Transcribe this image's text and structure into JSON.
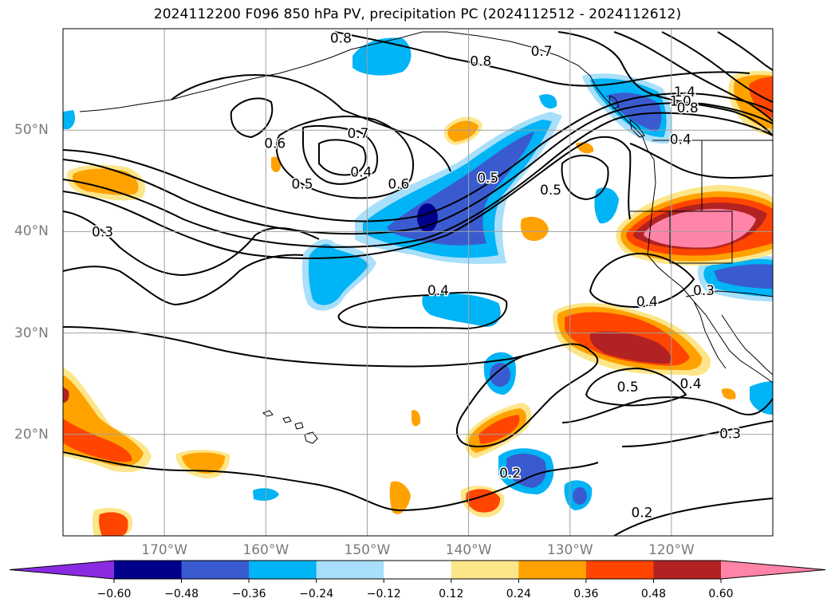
{
  "title": "2024112200 F096 850 hPa PV, precipitation PC (2024112512 - 2024112612)",
  "chart_data": {
    "type": "contour-map",
    "title": "2024112200 F096 850 hPa PV, precipitation PC (2024112512 - 2024112612)",
    "xlim": [
      -180,
      -110
    ],
    "ylim": [
      10,
      60
    ],
    "grid": true,
    "lon_ticks": [
      {
        "value": -170,
        "label": "170°W"
      },
      {
        "value": -160,
        "label": "160°W"
      },
      {
        "value": -150,
        "label": "150°W"
      },
      {
        "value": -140,
        "label": "140°W"
      },
      {
        "value": -130,
        "label": "130°W"
      },
      {
        "value": -120,
        "label": "120°W"
      }
    ],
    "lat_ticks": [
      {
        "value": 20,
        "label": "20°N"
      },
      {
        "value": 30,
        "label": "30°N"
      },
      {
        "value": 40,
        "label": "40°N"
      },
      {
        "value": 50,
        "label": "50°N"
      }
    ],
    "colorbar": {
      "extend": "both",
      "levels": [
        -0.6,
        -0.48,
        -0.36,
        -0.24,
        -0.12,
        0.12,
        0.24,
        0.36,
        0.48,
        0.6
      ],
      "tick_labels": [
        "−0.60",
        "−0.48",
        "−0.36",
        "−0.24",
        "−0.12",
        "0.12",
        "0.24",
        "0.36",
        "0.48",
        "0.60"
      ],
      "colors": [
        "#8a2be2",
        "#00008b",
        "#3a5bd0",
        "#00b4f5",
        "#a8dffa",
        "#ffffff",
        "#fde68a",
        "#ffa200",
        "#ff4500",
        "#b22222",
        "#ff84a8"
      ]
    },
    "pv_contour_labels": [
      {
        "text": "0.8",
        "lon": -152.6,
        "lat": 59.1
      },
      {
        "text": "0.8",
        "lon": -138.8,
        "lat": 56.8
      },
      {
        "text": "0.7",
        "lon": -132.8,
        "lat": 57.8
      },
      {
        "text": "1.4",
        "lon": -118.7,
        "lat": 53.8
      },
      {
        "text": "1.0",
        "lon": -119.1,
        "lat": 52.9
      },
      {
        "text": "0.8",
        "lon": -118.4,
        "lat": 52.2
      },
      {
        "text": "0.4",
        "lon": -119.1,
        "lat": 49.1
      },
      {
        "text": "0.7",
        "lon": -150.9,
        "lat": 49.7
      },
      {
        "text": "0.6",
        "lon": -159.1,
        "lat": 48.7
      },
      {
        "text": "0.4",
        "lon": -150.6,
        "lat": 45.9
      },
      {
        "text": "0.5",
        "lon": -156.4,
        "lat": 44.7
      },
      {
        "text": "0.6",
        "lon": -146.9,
        "lat": 44.7
      },
      {
        "text": "0.5",
        "lon": -138.1,
        "lat": 45.3
      },
      {
        "text": "0.5",
        "lon": -131.9,
        "lat": 44.1
      },
      {
        "text": "0.3",
        "lon": -176.1,
        "lat": 40.0
      },
      {
        "text": "0.4",
        "lon": -143.0,
        "lat": 34.2
      },
      {
        "text": "0.4",
        "lon": -122.4,
        "lat": 33.1
      },
      {
        "text": "0.3",
        "lon": -116.8,
        "lat": 34.2
      },
      {
        "text": "0.5",
        "lon": -124.3,
        "lat": 24.7
      },
      {
        "text": "0.4",
        "lon": -118.1,
        "lat": 25.0
      },
      {
        "text": "0.3",
        "lon": -114.2,
        "lat": 20.1
      },
      {
        "text": "0.2",
        "lon": -135.9,
        "lat": 16.2
      },
      {
        "text": "0.2",
        "lon": -122.9,
        "lat": 12.3
      }
    ],
    "precip_anomaly_regions": [
      {
        "level": -0.36,
        "lon_center": -145.5,
        "lat_center": 42.5,
        "lon_range": [
          -150,
          -139
        ],
        "lat_range": [
          38,
          48
        ]
      },
      {
        "level": -0.6,
        "lon_center": -144,
        "lat_center": 41,
        "lon_range": [
          -145,
          -143
        ],
        "lat_range": [
          40.3,
          41.8
        ]
      },
      {
        "level": -0.36,
        "lon_center": -127,
        "lat_center": 52,
        "lon_range": [
          -132,
          -122
        ],
        "lat_range": [
          49,
          55
        ]
      },
      {
        "level": -0.24,
        "lon_center": -148,
        "lat_center": 57.5,
        "lon_range": [
          -152,
          -144
        ],
        "lat_range": [
          55.5,
          59.5
        ]
      },
      {
        "level": -0.24,
        "lon_center": -154,
        "lat_center": 35.5,
        "lon_range": [
          -157,
          -150
        ],
        "lat_range": [
          32,
          39
        ]
      },
      {
        "level": -0.48,
        "lon_center": -114,
        "lat_center": 35.5,
        "lon_range": [
          -117,
          -110
        ],
        "lat_range": [
          33,
          38
        ]
      },
      {
        "level": -0.36,
        "lon_center": -138,
        "lat_center": 16,
        "lon_range": [
          -141,
          -134
        ],
        "lat_range": [
          13,
          19
        ]
      },
      {
        "level": -0.36,
        "lon_center": -139,
        "lat_center": 26,
        "lon_range": [
          -141,
          -137
        ],
        "lat_range": [
          23.5,
          28.5
        ]
      },
      {
        "level": -0.24,
        "lon_center": -131,
        "lat_center": 13.5,
        "lon_range": [
          -133,
          -129
        ],
        "lat_range": [
          12,
          15
        ]
      },
      {
        "level": -0.24,
        "lon_center": -140,
        "lat_center": 32,
        "lon_range": [
          -145,
          -136
        ],
        "lat_range": [
          30.5,
          33.5
        ]
      },
      {
        "level": -0.24,
        "lon_center": -111,
        "lat_center": 23.5,
        "lon_range": [
          -112,
          -110
        ],
        "lat_range": [
          21.5,
          25.5
        ]
      },
      {
        "level": 0.6,
        "lon_center": -118.5,
        "lat_center": 39.5,
        "lon_range": [
          -123,
          -114
        ],
        "lat_range": [
          36.5,
          42.5
        ]
      },
      {
        "level": 0.36,
        "lon_center": -126,
        "lat_center": 29.5,
        "lon_range": [
          -133,
          -118
        ],
        "lat_range": [
          25.5,
          33.5
        ]
      },
      {
        "level": 0.48,
        "lon_center": -126,
        "lat_center": 29,
        "lon_range": [
          -130,
          -122
        ],
        "lat_range": [
          26.5,
          31.5
        ]
      },
      {
        "level": 0.36,
        "lon_center": -111.5,
        "lat_center": 52,
        "lon_range": [
          -114,
          -110
        ],
        "lat_range": [
          48.5,
          55
        ]
      },
      {
        "level": 0.24,
        "lon_center": -175.5,
        "lat_center": 44.5,
        "lon_range": [
          -180,
          -172
        ],
        "lat_range": [
          42.5,
          46
        ]
      },
      {
        "level": 0.36,
        "lon_center": -176,
        "lat_center": 20,
        "lon_range": [
          -180,
          -172
        ],
        "lat_range": [
          16,
          24
        ]
      },
      {
        "level": 0.36,
        "lon_center": -138,
        "lat_center": 20.5,
        "lon_range": [
          -142,
          -134
        ],
        "lat_range": [
          18,
          23
        ]
      },
      {
        "level": 0.24,
        "lon_center": -168,
        "lat_center": 16.5,
        "lon_range": [
          -171,
          -165
        ],
        "lat_range": [
          15,
          18
        ]
      },
      {
        "level": 0.36,
        "lon_center": -141,
        "lat_center": 13.5,
        "lon_range": [
          -143,
          -138.5
        ],
        "lat_range": [
          12,
          15
        ]
      },
      {
        "level": 0.24,
        "lon_center": -146.5,
        "lat_center": 13.5,
        "lon_range": [
          -147.5,
          -145.5
        ],
        "lat_range": [
          11.5,
          15.5
        ]
      },
      {
        "level": 0.36,
        "lon_center": -175,
        "lat_center": 11.5,
        "lon_range": [
          -177,
          -172.5
        ],
        "lat_range": [
          10,
          13
        ]
      },
      {
        "level": 0.24,
        "lon_center": -139.5,
        "lat_center": 48.5,
        "lon_range": [
          -141,
          -137
        ],
        "lat_range": [
          47,
          50
        ]
      },
      {
        "level": 0.24,
        "lon_center": -135.5,
        "lat_center": 39.5,
        "lon_range": [
          -137,
          -134
        ],
        "lat_range": [
          38,
          41
        ]
      }
    ]
  }
}
